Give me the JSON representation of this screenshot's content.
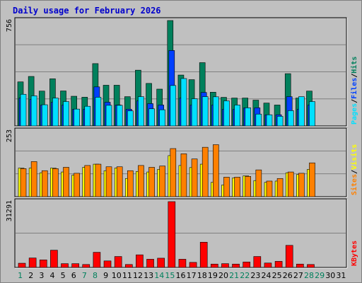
{
  "title": "Daily usage for February 2026",
  "colors": {
    "background": "#c0c0c0",
    "panel": "#c0c0c0",
    "title": "#0000cc",
    "hits": "#00805c",
    "files": "#0040ff",
    "pages": "#00e0ff",
    "visits": "#ffff00",
    "sites": "#ff8000",
    "kbytes": "#ff0000",
    "weekend_label": "#00805c",
    "weekday_label": "#000000"
  },
  "chart_data": [
    {
      "type": "bar",
      "name": "hits-files-pages",
      "categories": [
        "1",
        "2",
        "3",
        "4",
        "5",
        "6",
        "7",
        "8",
        "9",
        "10",
        "11",
        "12",
        "13",
        "14",
        "15",
        "16",
        "17",
        "18",
        "19",
        "20",
        "21",
        "22",
        "23",
        "24",
        "25",
        "26",
        "27",
        "28",
        "29",
        "30",
        "31"
      ],
      "ymax_label": "756",
      "ylim": [
        0,
        756
      ],
      "series": [
        {
          "name": "Hits",
          "values": [
            316,
            355,
            250,
            338,
            251,
            213,
            206,
            447,
            292,
            292,
            210,
            400,
            305,
            264,
            756,
            365,
            332,
            454,
            242,
            205,
            200,
            200,
            185,
            164,
            150,
            375,
            200,
            250,
            0,
            0,
            0
          ]
        },
        {
          "name": "Files",
          "values": [
            200,
            190,
            150,
            170,
            150,
            120,
            120,
            280,
            170,
            150,
            120,
            180,
            160,
            150,
            541,
            200,
            150,
            240,
            150,
            120,
            120,
            130,
            130,
            80,
            80,
            210,
            120,
            150,
            0,
            0,
            0
          ]
        },
        {
          "name": "Pages",
          "values": [
            227,
            216,
            152,
            200,
            175,
            121,
            141,
            206,
            148,
            148,
            108,
            210,
            123,
            116,
            290,
            340,
            195,
            210,
            209,
            180,
            150,
            130,
            85,
            80,
            69,
            110,
            210,
            175,
            0,
            0,
            0
          ]
        }
      ],
      "legend": [
        "Pages",
        "/",
        "Files",
        "/",
        "Hits"
      ]
    },
    {
      "type": "bar",
      "name": "sites-visits",
      "categories": [
        "1",
        "2",
        "3",
        "4",
        "5",
        "6",
        "7",
        "8",
        "9",
        "10",
        "11",
        "12",
        "13",
        "14",
        "15",
        "16",
        "17",
        "18",
        "19",
        "20",
        "21",
        "22",
        "23",
        "24",
        "25",
        "26",
        "27",
        "28",
        "29",
        "30",
        "31"
      ],
      "ymax_label": "253",
      "ylim": [
        0,
        253
      ],
      "series": [
        {
          "name": "Visits",
          "values": [
            110,
            110,
            92,
            110,
            95,
            83,
            113,
            125,
            100,
            110,
            70,
            97,
            95,
            105,
            158,
            120,
            112,
            125,
            55,
            45,
            72,
            80,
            62,
            55,
            60,
            92,
            85,
            105,
            0,
            0,
            0
          ]
        },
        {
          "name": "Sites",
          "values": [
            108,
            135,
            100,
            108,
            113,
            90,
            120,
            125,
            115,
            115,
            100,
            120,
            113,
            118,
            185,
            165,
            145,
            190,
            200,
            75,
            75,
            78,
            103,
            60,
            70,
            95,
            90,
            130,
            0,
            0,
            0
          ]
        }
      ],
      "legend": [
        "Sites",
        "/",
        "Visits"
      ]
    },
    {
      "type": "bar",
      "name": "kbytes",
      "categories": [
        "1",
        "2",
        "3",
        "4",
        "5",
        "6",
        "7",
        "8",
        "9",
        "10",
        "11",
        "12",
        "13",
        "14",
        "15",
        "16",
        "17",
        "18",
        "19",
        "20",
        "21",
        "22",
        "23",
        "24",
        "25",
        "26",
        "27",
        "28",
        "29",
        "30",
        "31"
      ],
      "ymax_label": "31291",
      "ylim": [
        0,
        31291
      ],
      "series": [
        {
          "name": "KBytes",
          "values": [
            2000,
            4500,
            3600,
            8200,
            1800,
            1800,
            1400,
            7200,
            3100,
            5200,
            1400,
            6000,
            3900,
            4400,
            31291,
            3900,
            2400,
            12000,
            1600,
            1800,
            1600,
            2600,
            5200,
            2100,
            2900,
            10500,
            1600,
            1400,
            0,
            0,
            0
          ]
        }
      ],
      "legend": [
        "KBytes"
      ]
    }
  ],
  "x_labels": {
    "weekend_days": [
      "1",
      "7",
      "8",
      "14",
      "15",
      "21",
      "22",
      "28",
      "29"
    ]
  }
}
